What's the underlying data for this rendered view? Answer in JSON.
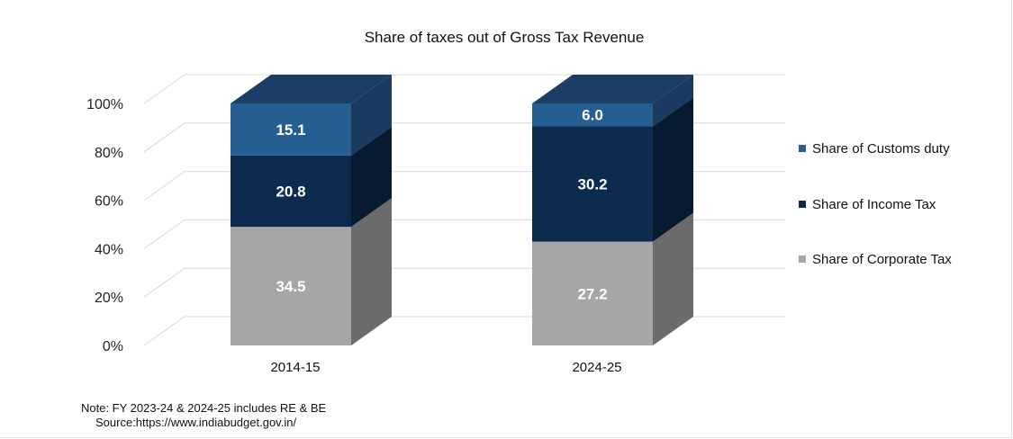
{
  "chart_data": {
    "type": "bar",
    "stacked": true,
    "three_d": true,
    "title": "Share of taxes out of Gross Tax Revenue",
    "categories": [
      "2014-15",
      "2024-25"
    ],
    "series": [
      {
        "name": "Share of Corporate Tax",
        "values": [
          34.5,
          27.2
        ],
        "color": "#a6a6a6",
        "side": "#6b6b6b",
        "top": "#bdbdbd"
      },
      {
        "name": "Share of Income Tax",
        "values": [
          20.8,
          30.2
        ],
        "color": "#0d2b4f",
        "side": "#071a30",
        "top": "#1b3e66"
      },
      {
        "name": "Share of Customs duty",
        "values": [
          15.1,
          6.0
        ],
        "color": "#255e91",
        "side": "#1b3a5f",
        "top": "#1b3e66"
      }
    ],
    "y_ticks": [
      "0%",
      "20%",
      "40%",
      "60%",
      "80%",
      "100%"
    ],
    "ylim": [
      0,
      100
    ],
    "grid": true,
    "legend_position": "right",
    "legend_order": [
      "Share of Customs duty",
      "Share of Income Tax",
      "Share of Corporate Tax"
    ]
  },
  "footnote": {
    "note": "Note: FY 2023-24 & 2024-25 includes RE & BE",
    "source": "Source:https://www.indiabudget.gov.in/"
  }
}
